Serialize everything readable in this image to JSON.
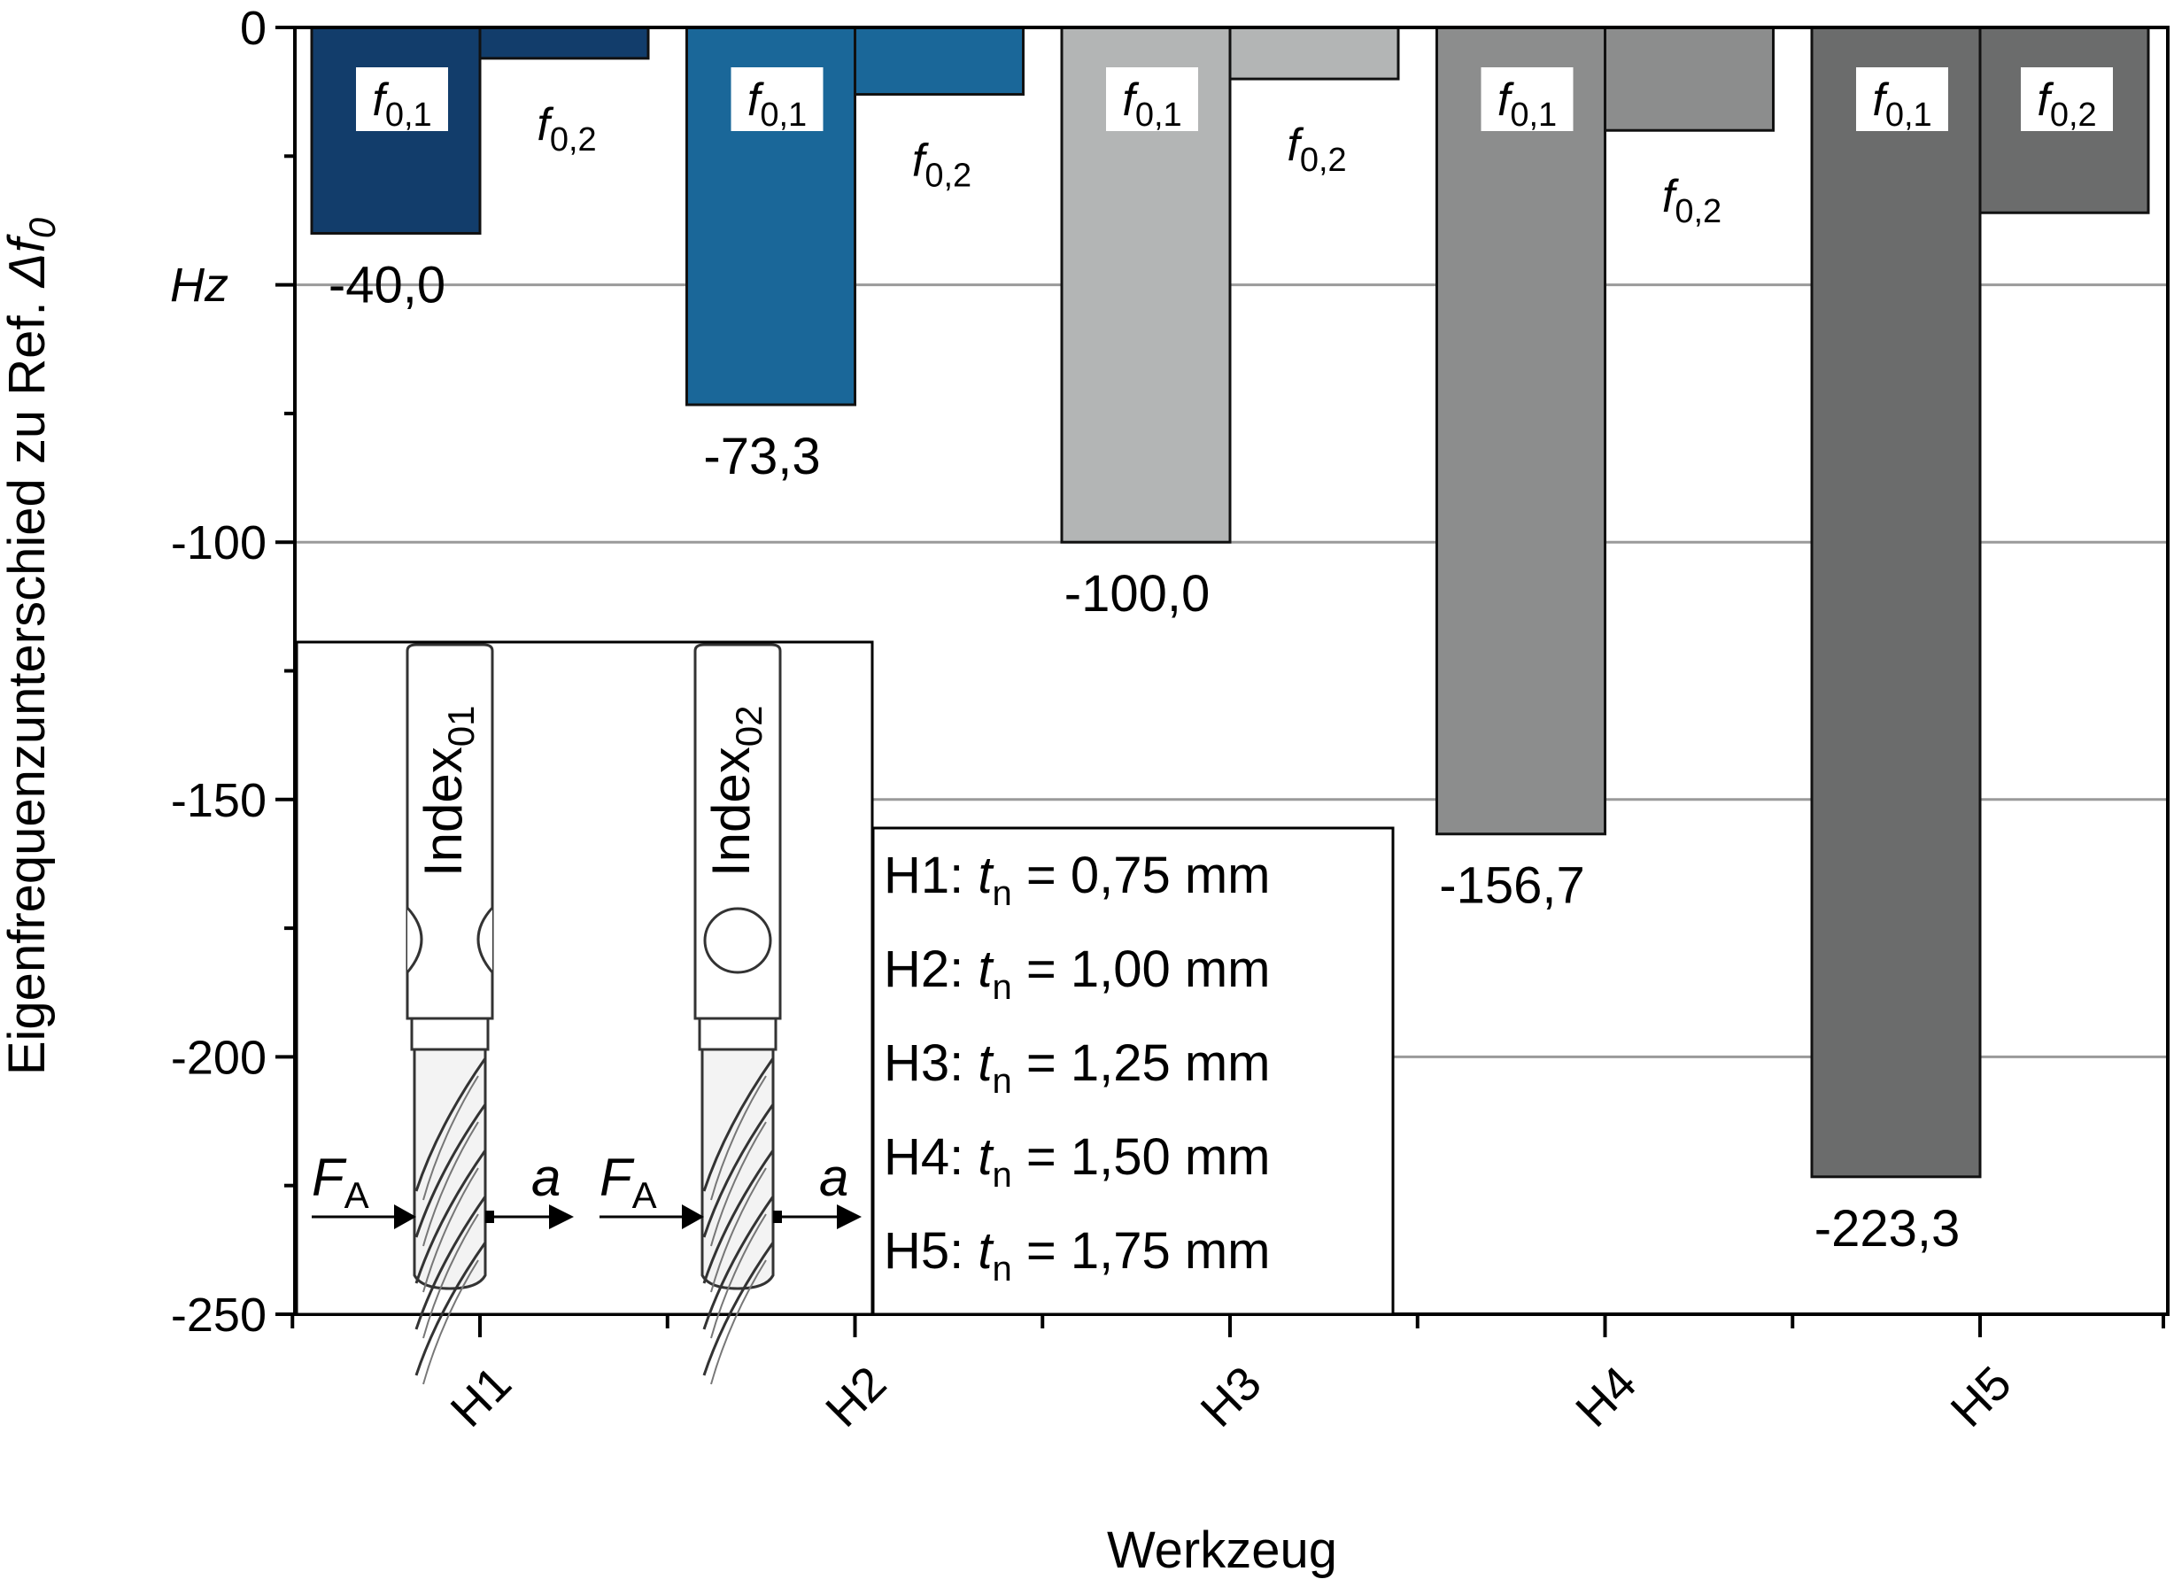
{
  "chart_data": {
    "type": "bar",
    "categories": [
      "H1",
      "H2",
      "H3",
      "H4",
      "H5"
    ],
    "series": [
      {
        "name": "f0,1",
        "label_main": "f",
        "label_sub": "0,1",
        "values": [
          -40.0,
          -73.3,
          -100.0,
          -156.7,
          -223.3
        ]
      },
      {
        "name": "f0,2",
        "label_main": "f",
        "label_sub": "0,2",
        "values": [
          -6,
          -13,
          -10,
          -20,
          -36
        ]
      }
    ],
    "value_labels": [
      "-40,0",
      "-73,3",
      "-100,0",
      "-156,7",
      "-223,3"
    ],
    "colors": {
      "f0,1": [
        "#123d6b",
        "#1a6799",
        "#b3b5b5",
        "#8c8d8d",
        "#6b6c6c"
      ],
      "f0,2": [
        "#123d6b",
        "#1a6799",
        "#b3b5b5",
        "#8c8d8d",
        "#6b6c6c"
      ]
    },
    "xlabel": "Werkzeug",
    "ylabel_main": "Eigenfrequenzunterschied zu Ref. ",
    "ylabel_symbol": "Δf",
    "ylabel_sub": "0",
    "unit_label": "Hz",
    "ylim": [
      -250,
      0
    ],
    "yticks": [
      0,
      -100,
      -150,
      -200,
      -250
    ],
    "ytick_labels": [
      "0",
      "-100",
      "-150",
      "-200",
      "-250"
    ],
    "grid": true,
    "legend": {
      "position": "bottom-center",
      "items": [
        {
          "prefix": "H1: ",
          "var": "t",
          "sub": "n",
          "value": " = 0,75 mm"
        },
        {
          "prefix": "H2: ",
          "var": "t",
          "sub": "n",
          "value": " = 1,00 mm"
        },
        {
          "prefix": "H3: ",
          "var": "t",
          "sub": "n",
          "value": " = 1,25 mm"
        },
        {
          "prefix": "H4: ",
          "var": "t",
          "sub": "n",
          "value": " = 1,50 mm"
        },
        {
          "prefix": "H5: ",
          "var": "t",
          "sub": "n",
          "value": " = 1,75 mm"
        }
      ]
    },
    "inset": {
      "tools": [
        {
          "label_main": "Index",
          "label_sub": "01",
          "neck": "notch"
        },
        {
          "label_main": "Index",
          "label_sub": "02",
          "neck": "hole"
        }
      ],
      "force_main": "F",
      "force_sub": "A",
      "accel": "a"
    }
  }
}
